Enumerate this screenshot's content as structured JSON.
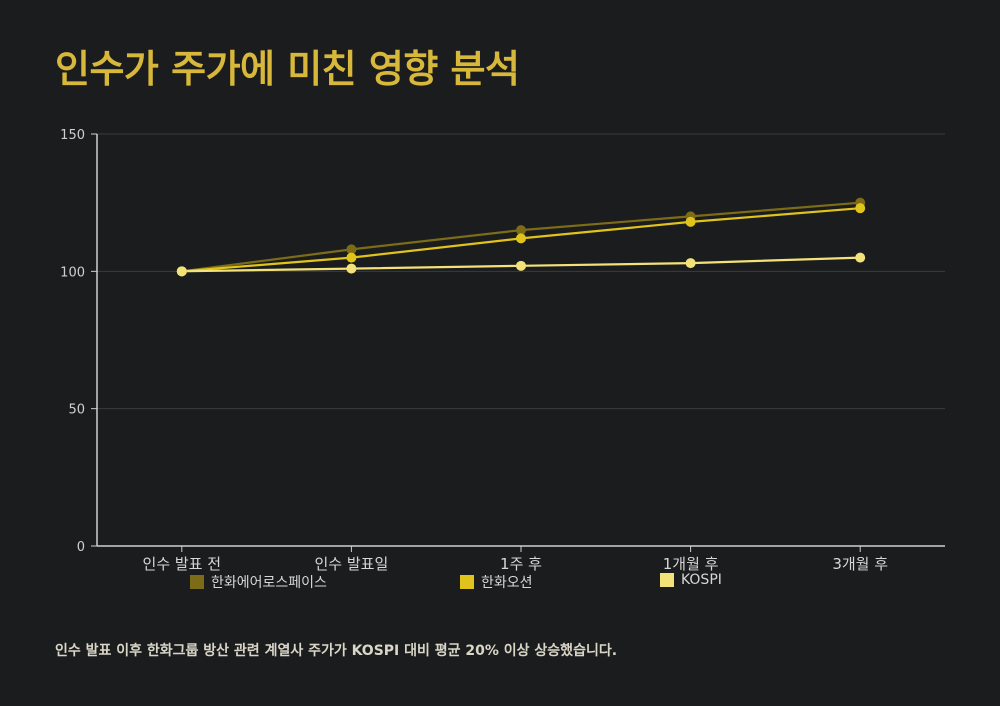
{
  "title": "인수가 주가에 미친 영향 분석",
  "footnote": "인수 발표 이후 한화그룹 방산 관련 계열사 주가가 KOSPI 대비 평균 20% 이상 상승했습니다.",
  "chart_data": {
    "type": "line",
    "title": "인수가 주가에 미친 영향 분석",
    "xlabel": "",
    "ylabel": "",
    "categories": [
      "인수 발표 전",
      "인수 발표일",
      "1주 후",
      "1개월 후",
      "3개월 후"
    ],
    "ylim": [
      0,
      150
    ],
    "yticks": [
      0,
      50,
      100,
      150
    ],
    "grid": true,
    "legend_position": "bottom",
    "series": [
      {
        "name": "한화에어로스페이스",
        "color": "#7d6c17",
        "values": [
          100,
          108,
          115,
          120,
          125
        ]
      },
      {
        "name": "한화오션",
        "color": "#e0c41c",
        "values": [
          100,
          105,
          112,
          118,
          123
        ]
      },
      {
        "name": "KOSPI",
        "color": "#f3e27a",
        "values": [
          100,
          101,
          102,
          103,
          105
        ]
      }
    ]
  }
}
